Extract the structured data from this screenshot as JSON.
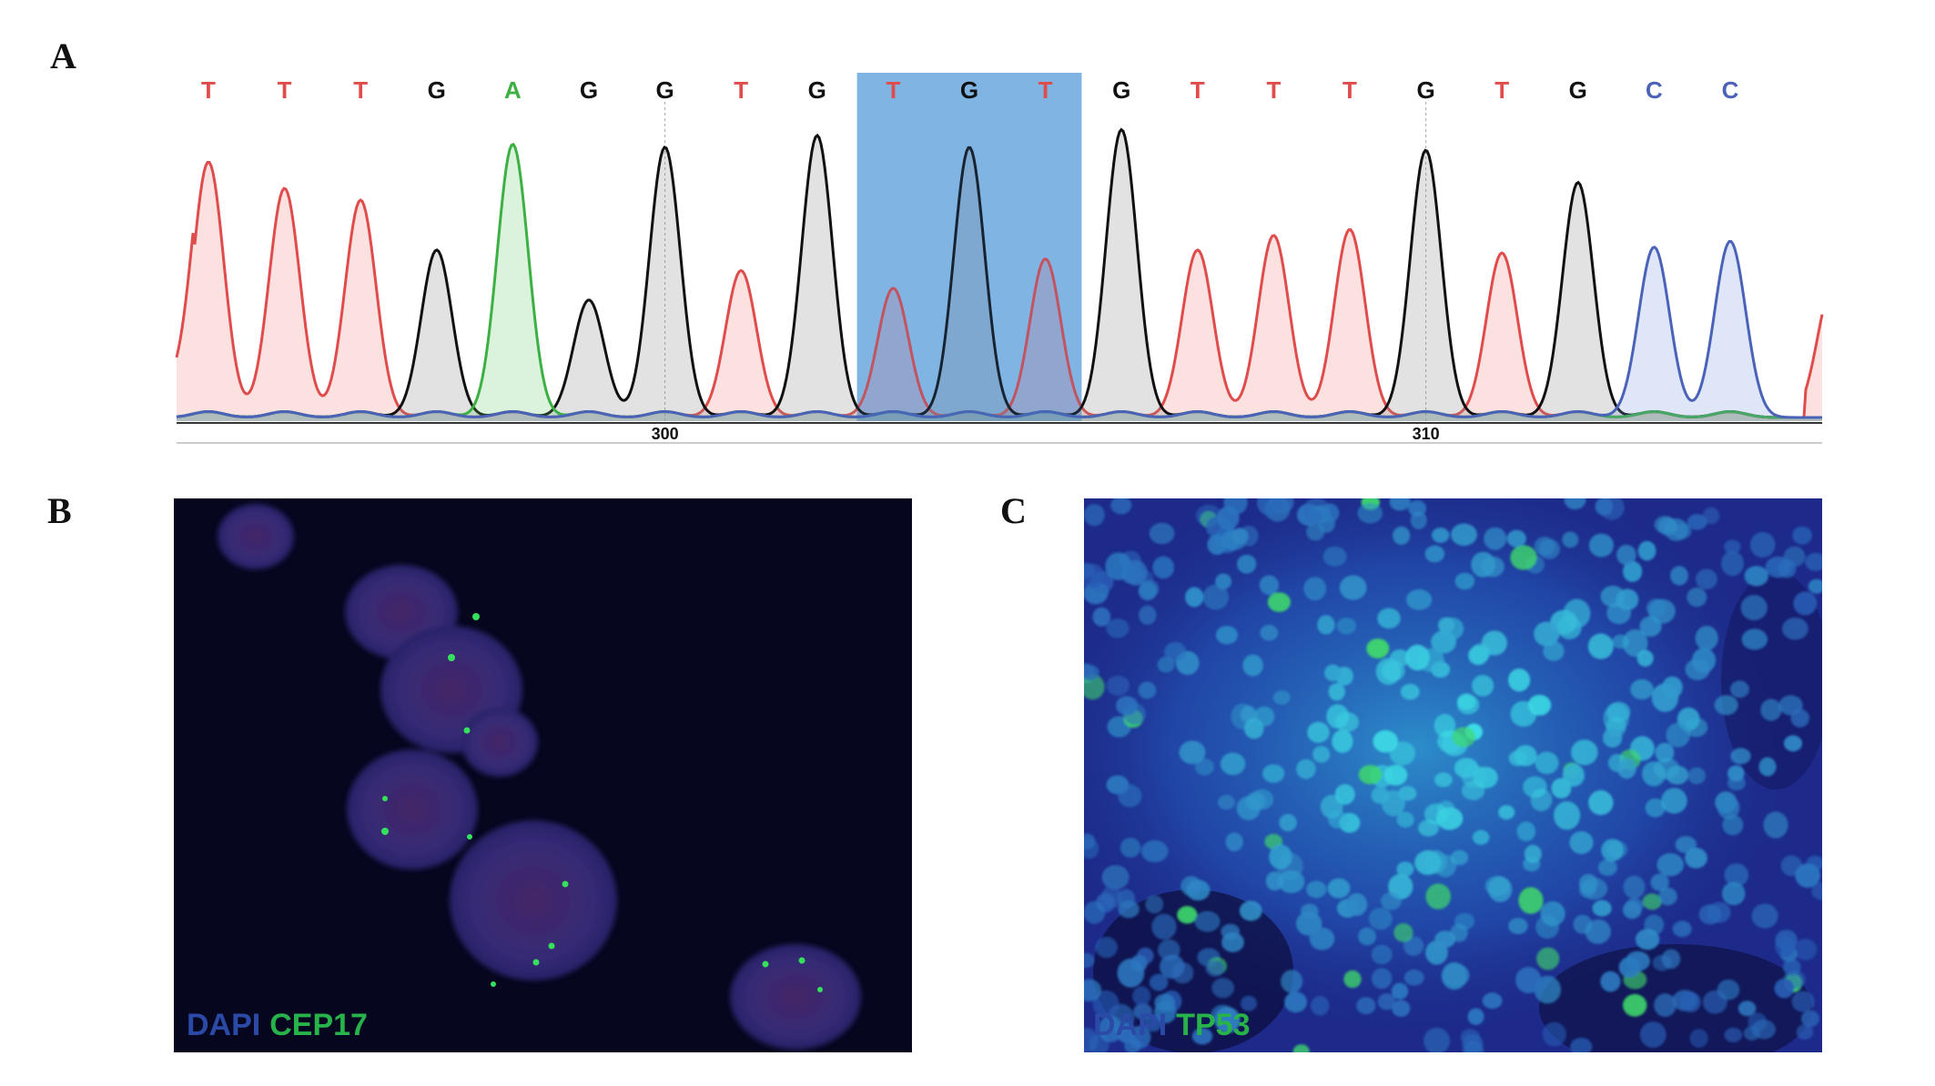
{
  "figure": {
    "panels": {
      "a": {
        "letter": "A"
      },
      "b": {
        "letter": "B",
        "stain": "DAPI",
        "probe": "CEP17"
      },
      "c": {
        "letter": "C",
        "stain": "DAPI",
        "probe": "TP53"
      }
    }
  },
  "colors": {
    "T": "#e04b4b",
    "G": "#111111",
    "A": "#3cb043",
    "C": "#4a62b8",
    "highlight": "#8ec1ea",
    "dapi": "#2b4aa8",
    "probe": "#27b34a"
  },
  "chart_data": {
    "type": "line",
    "description_type": "sanger-chromatogram",
    "bases": [
      "T",
      "T",
      "T",
      "G",
      "A",
      "G",
      "G",
      "T",
      "G",
      "T",
      "G",
      "T",
      "G",
      "T",
      "T",
      "T",
      "G",
      "T",
      "G",
      "C",
      "C"
    ],
    "peak_heights": [
      0.87,
      0.78,
      0.74,
      0.57,
      0.93,
      0.4,
      0.92,
      0.5,
      0.96,
      0.44,
      0.92,
      0.54,
      0.98,
      0.57,
      0.62,
      0.64,
      0.91,
      0.56,
      0.8,
      0.58,
      0.6
    ],
    "position_ticks": [
      300,
      310
    ],
    "tick_base_index": [
      6,
      16
    ],
    "highlighted_bases": [
      9,
      11
    ],
    "ylim": [
      0,
      1
    ]
  }
}
